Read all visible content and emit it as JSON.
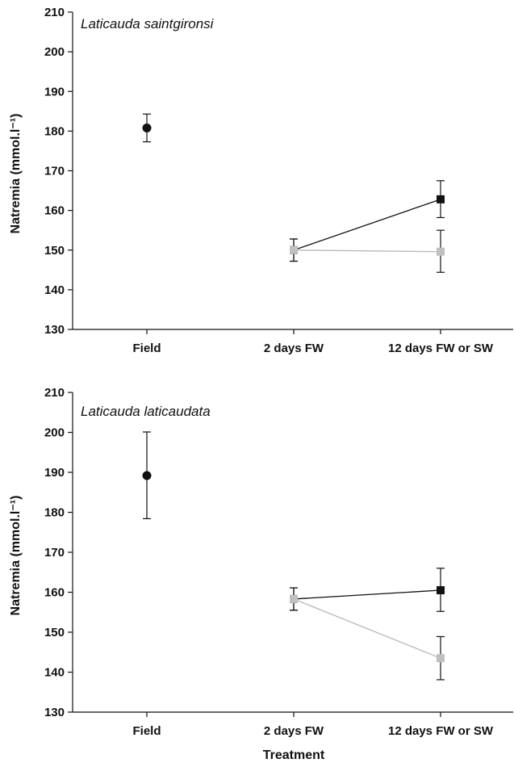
{
  "chart_data": [
    {
      "type": "scatter",
      "title": "Laticauda saintgironsi",
      "xlabel": "",
      "ylabel": "Natremia (mmol.l⁻¹)",
      "categories": [
        "Field",
        "2 days FW",
        "12 days FW or SW"
      ],
      "ylim": [
        130,
        210
      ],
      "yticks": [
        "130",
        "140",
        "150",
        "160",
        "170",
        "180",
        "190",
        "200",
        "210"
      ],
      "grid": false,
      "colors": {
        "field": "#111111",
        "sw": "#111111",
        "fw": "#c0c0c0"
      },
      "series": [
        {
          "marker": "circle",
          "color": "#111111",
          "x": [
            "Field"
          ],
          "y": [
            180.8
          ],
          "err_low": [
            177.3
          ],
          "err_high": [
            184.3
          ]
        },
        {
          "marker": "square",
          "color": "#111111",
          "x": [
            "2 days FW",
            "12 days FW or SW"
          ],
          "y": [
            150,
            162.8
          ],
          "err_low": [
            147.2,
            158.2
          ],
          "err_high": [
            152.8,
            167.5
          ]
        },
        {
          "marker": "square",
          "color": "#c0c0c0",
          "x": [
            "2 days FW",
            "12 days FW or SW"
          ],
          "y": [
            150,
            149.6
          ],
          "err_low": [
            147.2,
            144.4
          ],
          "err_high": [
            152.8,
            155.0
          ]
        }
      ]
    },
    {
      "type": "scatter",
      "title": "Laticauda laticaudata",
      "xlabel": "Treatment",
      "ylabel": "Natremia (mmol.l⁻¹)",
      "categories": [
        "Field",
        "2 days FW",
        "12 days FW or SW"
      ],
      "ylim": [
        130,
        210
      ],
      "yticks": [
        "130",
        "140",
        "150",
        "160",
        "170",
        "180",
        "190",
        "200",
        "210"
      ],
      "grid": false,
      "colors": {
        "field": "#111111",
        "sw": "#111111",
        "fw": "#c0c0c0"
      },
      "series": [
        {
          "marker": "circle",
          "color": "#111111",
          "x": [
            "Field"
          ],
          "y": [
            189.2
          ],
          "err_low": [
            178.4
          ],
          "err_high": [
            200.1
          ]
        },
        {
          "marker": "square",
          "color": "#111111",
          "x": [
            "2 days FW",
            "12 days FW or SW"
          ],
          "y": [
            158.3,
            160.5
          ],
          "err_low": [
            155.5,
            155.2
          ],
          "err_high": [
            161.1,
            166.0
          ]
        },
        {
          "marker": "square",
          "color": "#c0c0c0",
          "x": [
            "2 days FW",
            "12 days FW or SW"
          ],
          "y": [
            158.3,
            143.5
          ],
          "err_low": [
            155.5,
            138.1
          ],
          "err_high": [
            161.1,
            148.9
          ]
        }
      ]
    }
  ]
}
